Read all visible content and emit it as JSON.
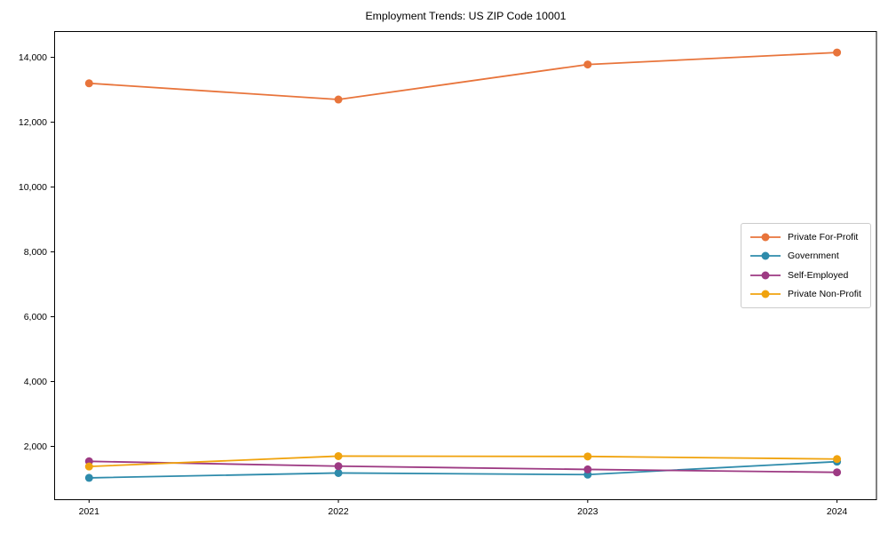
{
  "chart_data": {
    "type": "line",
    "title": "Employment Trends: US ZIP Code 10001",
    "categories": [
      2021,
      2022,
      2023,
      2024
    ],
    "x_tick_labels": [
      "2021",
      "2022",
      "2023",
      "2024"
    ],
    "y_ticks": [
      2000,
      4000,
      6000,
      8000,
      10000,
      12000,
      14000
    ],
    "y_tick_labels": [
      "2,000",
      "4,000",
      "6,000",
      "8,000",
      "10,000",
      "12,000",
      "14,000"
    ],
    "xlabel": "",
    "ylabel": "",
    "xlim": [
      2020.86,
      2024.16
    ],
    "ylim": [
      370,
      14810
    ],
    "grid": false,
    "legend_position": "center-right",
    "axis_color": "#000000",
    "background": "#ffffff",
    "series": [
      {
        "name": "Private For-Profit",
        "color": "#e8743b",
        "marker": "circle",
        "values": [
          13200,
          12700,
          13780,
          14150
        ]
      },
      {
        "name": "Government",
        "color": "#2e8bab",
        "marker": "circle",
        "values": [
          1030,
          1180,
          1130,
          1530
        ]
      },
      {
        "name": "Self-Employed",
        "color": "#9d3a83",
        "marker": "circle",
        "values": [
          1540,
          1390,
          1290,
          1200
        ]
      },
      {
        "name": "Private Non-Profit",
        "color": "#f0a30e",
        "marker": "circle",
        "values": [
          1380,
          1700,
          1690,
          1610
        ]
      }
    ]
  }
}
